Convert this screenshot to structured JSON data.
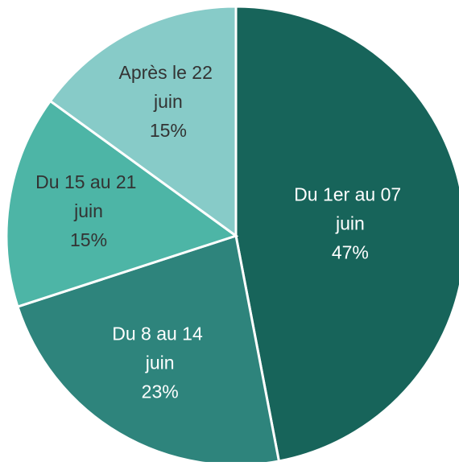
{
  "chart_data": {
    "type": "pie",
    "categories": [
      "Du 1er au 07 juin",
      "Du 8 au 14 juin",
      "Du 15 au 21 juin",
      "Après le 22 juin"
    ],
    "values": [
      47,
      23,
      15,
      15
    ],
    "value_labels": [
      "47%",
      "23%",
      "15%",
      "15%"
    ],
    "colors": [
      "#17645a",
      "#2e847c",
      "#4db5a6",
      "#87cbc8"
    ],
    "label_colors": [
      "#ffffff",
      "#ffffff",
      "#333333",
      "#333333"
    ]
  }
}
